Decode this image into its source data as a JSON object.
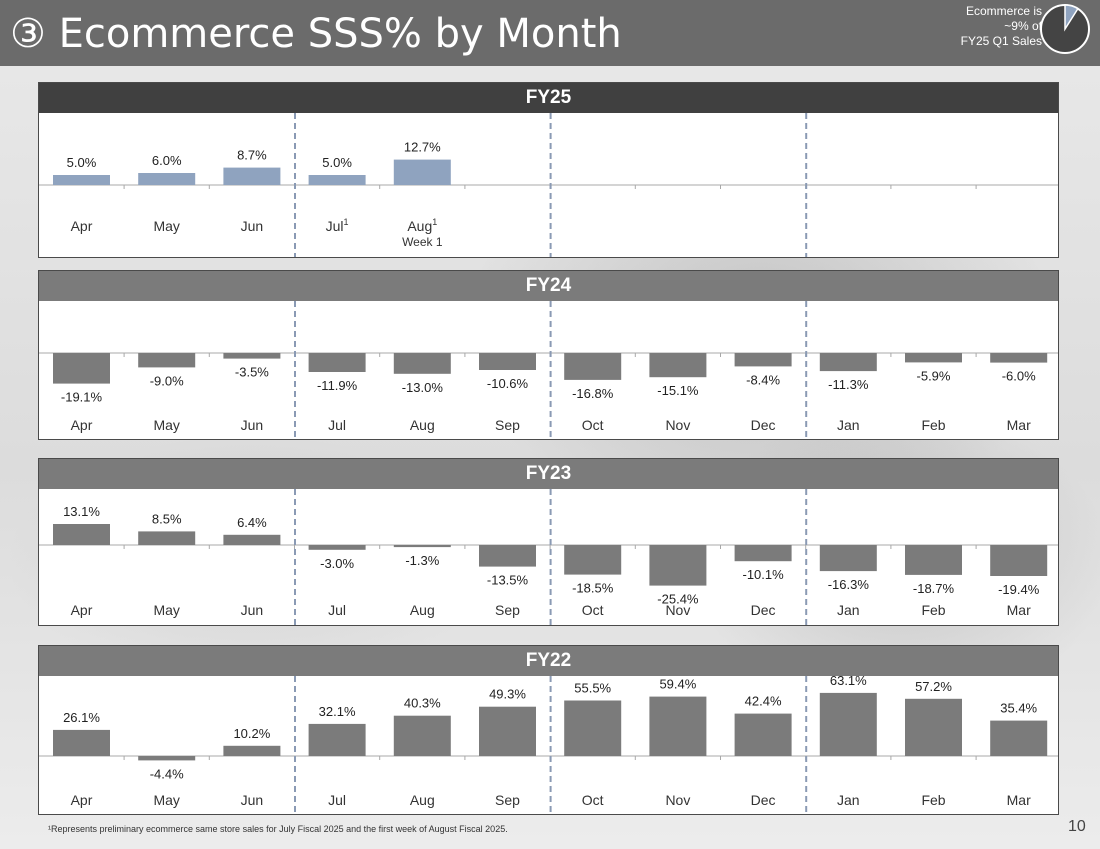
{
  "title": "③ Ecommerce SSS% by Month",
  "callout": {
    "lines": [
      "Ecommerce is",
      "~9% of",
      "FY25 Q1 Sales"
    ],
    "share": 0.09
  },
  "footnote": "¹Represents preliminary ecommerce same store sales for July Fiscal 2025 and the first week of August Fiscal 2025.",
  "page_number": "10",
  "colors": {
    "fy25_bar": "#8fa3bf",
    "bar": "#7b7b7b",
    "fy25_header": "#404040",
    "header": "#7b7b7b"
  },
  "chart_data": [
    {
      "type": "bar",
      "title": "FY25",
      "categories": [
        "Apr",
        "May",
        "Jun",
        "Jul",
        "Aug",
        "",
        "",
        "",
        "",
        "",
        "",
        ""
      ],
      "category_notes": [
        "",
        "",
        "",
        "1",
        "1",
        "",
        "",
        "",
        "",
        "",
        "",
        ""
      ],
      "category_sublabels": [
        "",
        "",
        "",
        "",
        "Week 1",
        "",
        "",
        "",
        "",
        "",
        "",
        ""
      ],
      "values": [
        5.0,
        6.0,
        8.7,
        5.0,
        12.7,
        null,
        null,
        null,
        null,
        null,
        null,
        null
      ],
      "labels": [
        "5.0%",
        "6.0%",
        "8.7%",
        "5.0%",
        "12.7%",
        "",
        "",
        "",
        "",
        "",
        "",
        ""
      ],
      "ylim": [
        -25,
        40
      ]
    },
    {
      "type": "bar",
      "title": "FY24",
      "categories": [
        "Apr",
        "May",
        "Jun",
        "Jul",
        "Aug",
        "Sep",
        "Oct",
        "Nov",
        "Dec",
        "Jan",
        "Feb",
        "Mar"
      ],
      "values": [
        -19.1,
        -9.0,
        -3.5,
        -11.9,
        -13.0,
        -10.6,
        -16.8,
        -15.1,
        -8.4,
        -11.3,
        -5.9,
        -6.0
      ],
      "labels": [
        "-19.1%",
        "-9.0%",
        "-3.5%",
        "-11.9%",
        "-13.0%",
        "-10.6%",
        "-16.8%",
        "-15.1%",
        "-8.4%",
        "-11.3%",
        "-5.9%",
        "-6.0%"
      ],
      "ylim": [
        -45,
        30
      ]
    },
    {
      "type": "bar",
      "title": "FY23",
      "categories": [
        "Apr",
        "May",
        "Jun",
        "Jul",
        "Aug",
        "Sep",
        "Oct",
        "Nov",
        "Dec",
        "Jan",
        "Feb",
        "Mar"
      ],
      "values": [
        13.1,
        8.5,
        6.4,
        -3.0,
        -1.3,
        -13.5,
        -18.5,
        -25.4,
        -10.1,
        -16.3,
        -18.7,
        -19.4
      ],
      "labels": [
        "13.1%",
        "8.5%",
        "6.4%",
        "-3.0%",
        "-1.3%",
        "-13.5%",
        "-18.5%",
        "-25.4%",
        "-10.1%",
        "-16.3%",
        "-18.7%",
        "-19.4%"
      ],
      "ylim": [
        -45,
        30
      ]
    },
    {
      "type": "bar",
      "title": "FY22",
      "categories": [
        "Apr",
        "May",
        "Jun",
        "Jul",
        "Aug",
        "Sep",
        "Oct",
        "Nov",
        "Dec",
        "Jan",
        "Feb",
        "Mar"
      ],
      "values": [
        26.1,
        -4.4,
        10.2,
        32.1,
        40.3,
        49.3,
        55.5,
        59.4,
        42.4,
        63.1,
        57.2,
        35.4
      ],
      "labels": [
        "26.1%",
        "-4.4%",
        "10.2%",
        "32.1%",
        "40.3%",
        "49.3%",
        "55.5%",
        "59.4%",
        "42.4%",
        "63.1%",
        "57.2%",
        "35.4%"
      ],
      "ylim": [
        -40,
        70
      ]
    }
  ]
}
